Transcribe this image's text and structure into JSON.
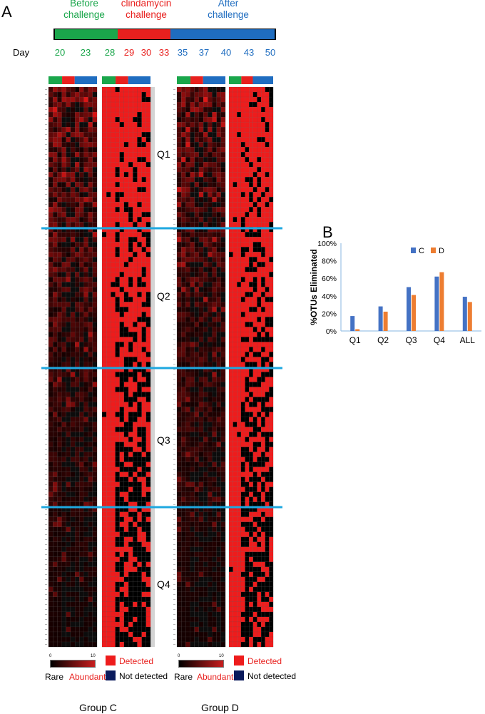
{
  "panel_a": {
    "letter": "A",
    "timeline": {
      "day_label": "Day",
      "phases": [
        {
          "label": "Before\nchallenge",
          "color": "#1aa64b",
          "start": 20,
          "end": 28
        },
        {
          "label": "clindamycin\nchallenge",
          "color": "#e8201e",
          "start": 28,
          "end": 33
        },
        {
          "label": "After\nchallenge",
          "color": "#1f6dc0",
          "start": 33,
          "end": 50
        }
      ],
      "days": [
        {
          "d": "20",
          "color": "#1aa64b"
        },
        {
          "d": "23",
          "color": "#1aa64b"
        },
        {
          "d": "28",
          "color": "#1aa64b"
        },
        {
          "d": "29",
          "color": "#e8201e"
        },
        {
          "d": "30",
          "color": "#e8201e"
        },
        {
          "d": "33",
          "color": "#e8201e"
        },
        {
          "d": "35",
          "color": "#1f6dc0"
        },
        {
          "d": "37",
          "color": "#1f6dc0"
        },
        {
          "d": "40",
          "color": "#1f6dc0"
        },
        {
          "d": "43",
          "color": "#1f6dc0"
        },
        {
          "d": "50",
          "color": "#1f6dc0"
        }
      ]
    },
    "quartiles": [
      "Q1",
      "Q2",
      "Q3",
      "Q4"
    ],
    "groups": [
      "Group C",
      "Group D"
    ],
    "legend": {
      "scale_min": "0",
      "scale_max": "10",
      "rare": "Rare",
      "abundant": "Abundant",
      "detected": "Detected",
      "not_detected": "Not detected"
    },
    "colors": {
      "detected": "#ee1c1c",
      "not_detected": "#0a1a5c",
      "divider": "#1ea8e0",
      "abundant": "#c81e1e",
      "rare": "#000000"
    }
  },
  "panel_b": {
    "letter": "B",
    "chart_data": {
      "type": "bar",
      "categories": [
        "Q1",
        "Q2",
        "Q3",
        "Q4",
        "ALL"
      ],
      "series": [
        {
          "name": "C",
          "color": "#4472c4",
          "values": [
            17,
            28,
            50,
            62,
            39
          ]
        },
        {
          "name": "D",
          "color": "#ed7d31",
          "values": [
            2,
            22,
            41,
            67,
            33
          ]
        }
      ],
      "ylabel": "%OTUs Eliminated",
      "ylim": [
        0,
        100
      ],
      "yticks": [
        "0%",
        "20%",
        "40%",
        "60%",
        "80%",
        "100%"
      ],
      "legend": "top"
    }
  }
}
